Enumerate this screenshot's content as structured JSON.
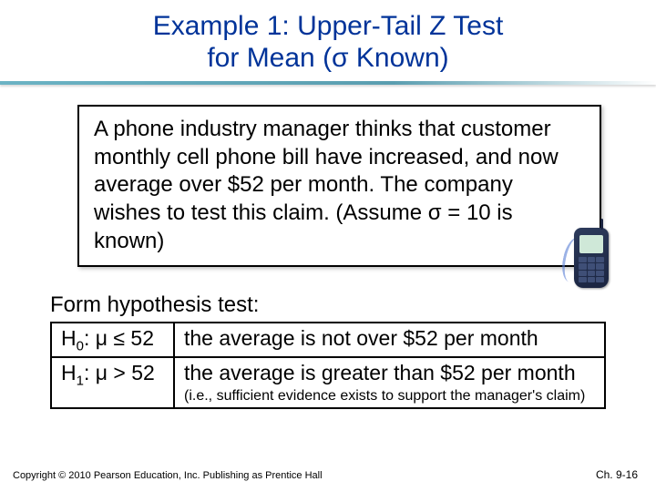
{
  "title_line1": "Example 1: Upper-Tail Z Test",
  "title_line2": "for Mean  (σ Known)",
  "problem_text": "A phone industry manager thinks that customer monthly cell phone bill have increased, and now average over $52 per month.  The company wishes to test this claim.  (Assume σ = 10 is known)",
  "hypothesis_label": "Form hypothesis test:",
  "h0_sym": "H",
  "h0_sub": "0",
  "h0_expr": ": μ ≤ 52",
  "h0_text": "the average is not over $52 per month",
  "h1_sym": "H",
  "h1_sub": "1",
  "h1_expr": ": μ > 52",
  "h1_text": "the average is greater than $52 per month",
  "h1_note": "(i.e., sufficient evidence exists to support the manager's claim)",
  "copyright": "Copyright © 2010 Pearson Education, Inc. Publishing as Prentice Hall",
  "pageref": "Ch. 9-16",
  "colors": {
    "title": "#003399",
    "underline_start": "#6bb3c4",
    "box_border": "#000000",
    "background": "#ffffff"
  }
}
